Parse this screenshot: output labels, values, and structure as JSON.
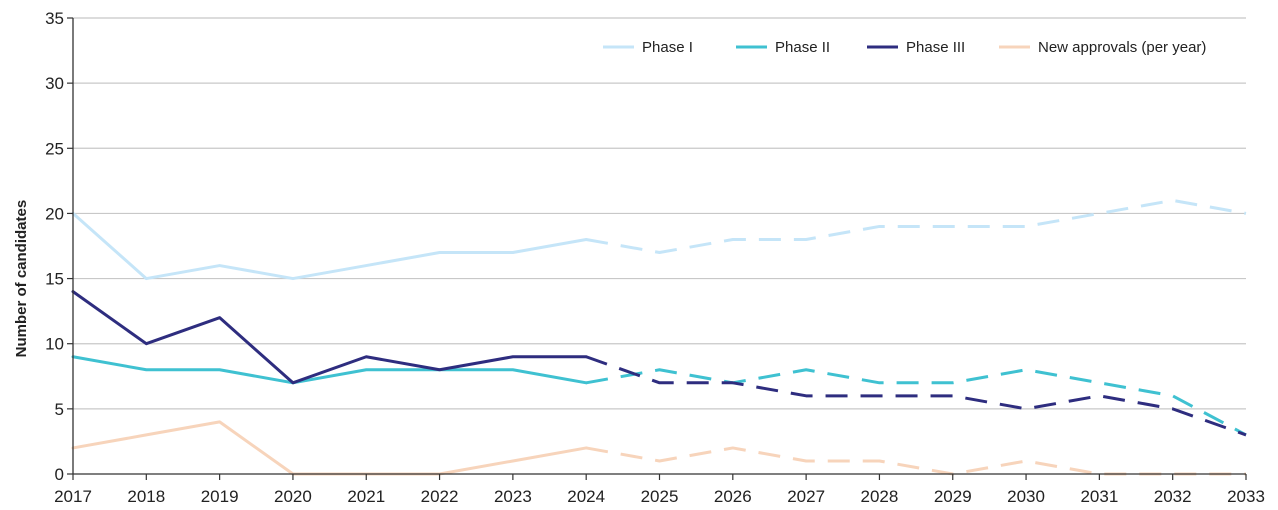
{
  "chart_data": {
    "type": "line",
    "title": "",
    "xlabel": "",
    "ylabel": "Number of candidates",
    "x": [
      2017,
      2018,
      2019,
      2020,
      2021,
      2022,
      2023,
      2024,
      2025,
      2026,
      2027,
      2028,
      2029,
      2030,
      2031,
      2032,
      2033
    ],
    "x_tick_labels": [
      "2017",
      "2018",
      "2019",
      "2020",
      "2021",
      "2022",
      "2023",
      "2024",
      "2025",
      "2026",
      "2027",
      "2028",
      "2029",
      "2030",
      "2031",
      "2032",
      "2033"
    ],
    "ylim": [
      0,
      35
    ],
    "y_ticks": [
      0,
      5,
      10,
      15,
      20,
      25,
      30,
      35
    ],
    "y_tick_labels": [
      "0",
      "5",
      "10",
      "15",
      "20",
      "25",
      "30",
      "35"
    ],
    "grid": "horizontal",
    "legend_position": "top-right",
    "projection_start": 2024,
    "series": [
      {
        "name": "Phase I",
        "color": "#c5e5f8",
        "values": [
          20,
          15,
          16,
          15,
          16,
          17,
          17,
          18,
          17,
          18,
          18,
          19,
          19,
          19,
          20,
          21,
          20
        ]
      },
      {
        "name": "Phase II",
        "color": "#3fc1d1",
        "values": [
          9,
          8,
          8,
          7,
          8,
          8,
          8,
          7,
          8,
          7,
          8,
          7,
          7,
          8,
          7,
          6,
          3
        ]
      },
      {
        "name": "Phase III",
        "color": "#2e2d7f",
        "values": [
          14,
          10,
          12,
          7,
          9,
          8,
          9,
          9,
          7,
          7,
          6,
          6,
          6,
          5,
          6,
          5,
          3
        ]
      },
      {
        "name": "New approvals (per year)",
        "color": "#f7d4bb",
        "values": [
          2,
          3,
          4,
          0,
          0,
          0,
          1,
          2,
          1,
          2,
          1,
          1,
          0,
          1,
          0,
          0,
          0
        ]
      }
    ]
  }
}
